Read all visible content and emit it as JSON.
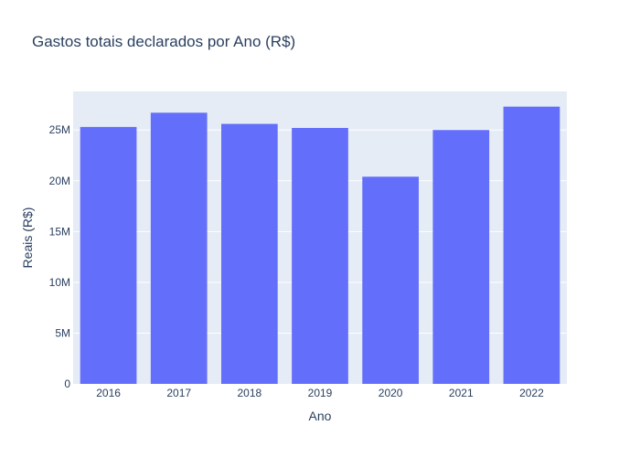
{
  "chart_data": {
    "type": "bar",
    "title": "Gastos totais declarados por Ano (R$)",
    "xlabel": "Ano",
    "ylabel": "Reais (R$)",
    "categories": [
      "2016",
      "2017",
      "2018",
      "2019",
      "2020",
      "2021",
      "2022"
    ],
    "values": [
      25300000,
      26700000,
      25600000,
      25200000,
      20400000,
      25000000,
      27300000
    ],
    "ylim": [
      0,
      28800000
    ],
    "y_ticks": [
      0,
      5000000,
      10000000,
      15000000,
      20000000,
      25000000
    ],
    "y_tick_labels": [
      "0",
      "5M",
      "10M",
      "15M",
      "20M",
      "25M"
    ],
    "grid": true,
    "colors": {
      "bar": "#636efa",
      "plot_background": "#e5ecf6",
      "gridline": "#ffffff",
      "text": "#2a3f5f"
    }
  }
}
